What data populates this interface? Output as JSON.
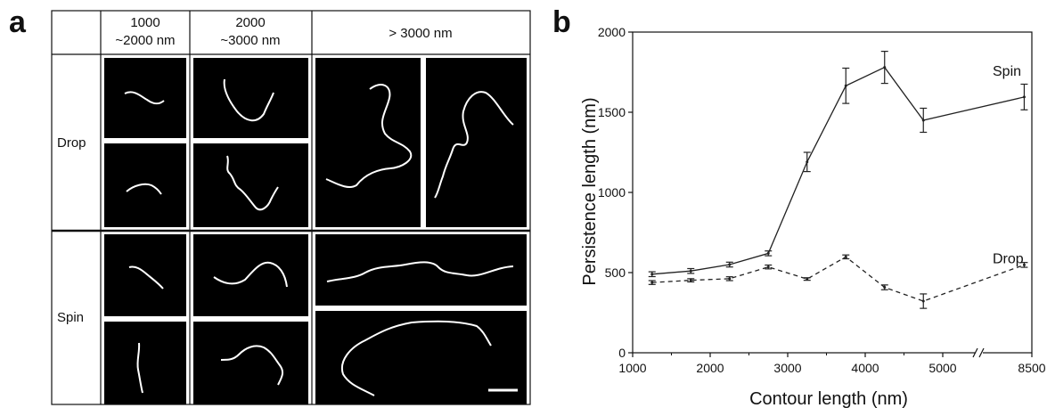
{
  "panel_a": {
    "label": "a",
    "column_headers": [
      [
        "1000",
        "~2000 nm"
      ],
      [
        "2000",
        "~3000 nm"
      ],
      [
        "> 3000 nm"
      ]
    ],
    "row_labels": [
      "Drop",
      "Spin"
    ],
    "image_count": 12,
    "scale_bar": true
  },
  "panel_b": {
    "label": "b"
  },
  "chart_data": {
    "type": "line",
    "xlabel": "Contour length (nm)",
    "ylabel": "Persistence length (nm)",
    "x_ticks": [
      "1000",
      "2000",
      "3000",
      "4000",
      "5000",
      "8500"
    ],
    "y_ticks": [
      "0",
      "500",
      "1000",
      "1500",
      "2000"
    ],
    "xlim": [
      1000,
      8500
    ],
    "x_axis_break": [
      5000,
      8500
    ],
    "ylim": [
      0,
      2000
    ],
    "grid": false,
    "series": [
      {
        "name": "Spin",
        "line_style": "solid",
        "x": [
          1250,
          1750,
          2250,
          2750,
          3250,
          3750,
          4250,
          4750,
          8000
        ],
        "y": [
          490,
          510,
          550,
          620,
          1190,
          1665,
          1780,
          1450,
          1595
        ],
        "error": [
          15,
          15,
          15,
          15,
          60,
          110,
          100,
          75,
          80
        ]
      },
      {
        "name": "Drop",
        "line_style": "dashed",
        "x": [
          1250,
          1750,
          2250,
          2750,
          3250,
          3750,
          4250,
          4750,
          8000
        ],
        "y": [
          438,
          452,
          462,
          535,
          460,
          598,
          408,
          322,
          548
        ],
        "error": [
          12,
          10,
          12,
          12,
          8,
          12,
          15,
          45,
          15
        ]
      }
    ]
  }
}
